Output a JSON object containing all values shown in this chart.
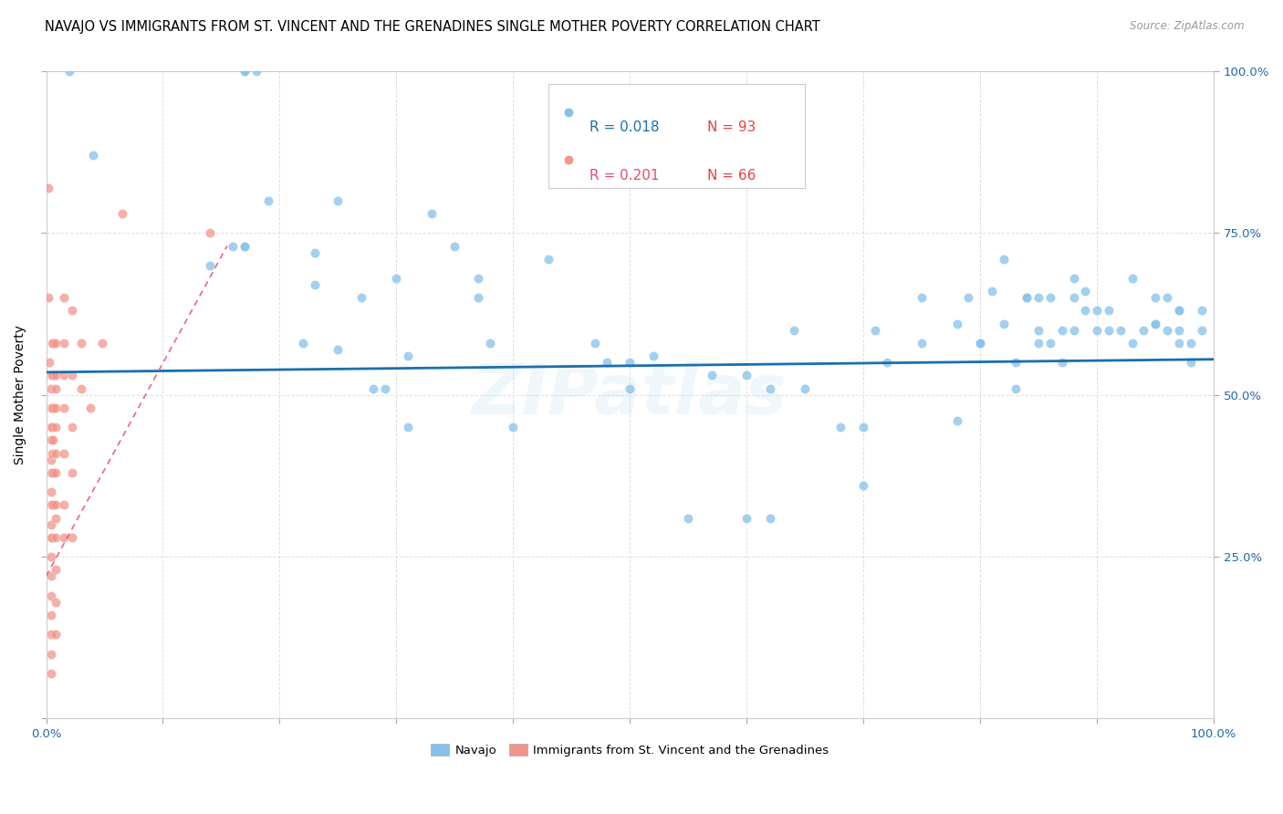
{
  "title": "NAVAJO VS IMMIGRANTS FROM ST. VINCENT AND THE GRENADINES SINGLE MOTHER POVERTY CORRELATION CHART",
  "source": "Source: ZipAtlas.com",
  "ylabel": "Single Mother Poverty",
  "watermark": "ZIPatlas",
  "legend_blue_r": "R = 0.018",
  "legend_blue_n": "N = 93",
  "legend_pink_r": "R = 0.201",
  "legend_pink_n": "N = 66",
  "legend_blue_label": "Navajo",
  "legend_pink_label": "Immigrants from St. Vincent and the Grenadines",
  "blue_color": "#85c1e9",
  "pink_color": "#f1948a",
  "blue_line_color": "#1a6fad",
  "pink_line_color": "#e74c6b",
  "blue_r_color": "#1a6fad",
  "pink_r_color": "#e74c6b",
  "blue_n_color": "#e84040",
  "pink_n_color": "#e84040",
  "xlim": [
    0.0,
    1.0
  ],
  "ylim": [
    0.0,
    1.0
  ],
  "blue_scatter_x": [
    0.02,
    0.04,
    0.14,
    0.16,
    0.17,
    0.17,
    0.17,
    0.17,
    0.18,
    0.19,
    0.22,
    0.23,
    0.23,
    0.25,
    0.25,
    0.27,
    0.28,
    0.29,
    0.3,
    0.31,
    0.31,
    0.33,
    0.35,
    0.37,
    0.37,
    0.38,
    0.4,
    0.43,
    0.47,
    0.48,
    0.5,
    0.5,
    0.52,
    0.55,
    0.57,
    0.6,
    0.6,
    0.62,
    0.62,
    0.64,
    0.65,
    0.68,
    0.7,
    0.7,
    0.71,
    0.72,
    0.75,
    0.75,
    0.78,
    0.78,
    0.79,
    0.8,
    0.8,
    0.81,
    0.82,
    0.82,
    0.83,
    0.83,
    0.84,
    0.84,
    0.85,
    0.85,
    0.85,
    0.86,
    0.86,
    0.87,
    0.87,
    0.88,
    0.88,
    0.88,
    0.89,
    0.89,
    0.9,
    0.9,
    0.91,
    0.91,
    0.92,
    0.93,
    0.93,
    0.94,
    0.95,
    0.95,
    0.95,
    0.96,
    0.96,
    0.97,
    0.97,
    0.97,
    0.97,
    0.98,
    0.98,
    0.99,
    0.99
  ],
  "blue_scatter_y": [
    1.0,
    0.87,
    0.7,
    0.73,
    0.73,
    0.73,
    1.0,
    1.0,
    1.0,
    0.8,
    0.58,
    0.72,
    0.67,
    0.57,
    0.8,
    0.65,
    0.51,
    0.51,
    0.68,
    0.45,
    0.56,
    0.78,
    0.73,
    0.68,
    0.65,
    0.58,
    0.45,
    0.71,
    0.58,
    0.55,
    0.55,
    0.51,
    0.56,
    0.31,
    0.53,
    0.53,
    0.31,
    0.51,
    0.31,
    0.6,
    0.51,
    0.45,
    0.36,
    0.45,
    0.6,
    0.55,
    0.58,
    0.65,
    0.46,
    0.61,
    0.65,
    0.58,
    0.58,
    0.66,
    0.71,
    0.61,
    0.55,
    0.51,
    0.65,
    0.65,
    0.6,
    0.65,
    0.58,
    0.65,
    0.58,
    0.55,
    0.6,
    0.6,
    0.65,
    0.68,
    0.63,
    0.66,
    0.6,
    0.63,
    0.63,
    0.6,
    0.6,
    0.68,
    0.58,
    0.6,
    0.61,
    0.61,
    0.65,
    0.6,
    0.65,
    0.6,
    0.63,
    0.63,
    0.58,
    0.55,
    0.58,
    0.6,
    0.63
  ],
  "pink_scatter_x": [
    0.002,
    0.002,
    0.003,
    0.004,
    0.004,
    0.004,
    0.004,
    0.004,
    0.004,
    0.004,
    0.004,
    0.004,
    0.004,
    0.004,
    0.004,
    0.004,
    0.004,
    0.004,
    0.004,
    0.004,
    0.004,
    0.005,
    0.005,
    0.005,
    0.005,
    0.005,
    0.005,
    0.005,
    0.005,
    0.006,
    0.006,
    0.006,
    0.006,
    0.006,
    0.006,
    0.008,
    0.008,
    0.008,
    0.008,
    0.008,
    0.008,
    0.008,
    0.008,
    0.008,
    0.008,
    0.008,
    0.008,
    0.008,
    0.015,
    0.015,
    0.015,
    0.015,
    0.015,
    0.015,
    0.015,
    0.022,
    0.022,
    0.022,
    0.022,
    0.022,
    0.03,
    0.03,
    0.038,
    0.048,
    0.065,
    0.14
  ],
  "pink_scatter_y": [
    0.82,
    0.65,
    0.55,
    0.53,
    0.51,
    0.48,
    0.45,
    0.43,
    0.4,
    0.38,
    0.35,
    0.33,
    0.3,
    0.28,
    0.25,
    0.22,
    0.19,
    0.16,
    0.13,
    0.1,
    0.07,
    0.58,
    0.53,
    0.48,
    0.45,
    0.41,
    0.38,
    0.33,
    0.28,
    0.58,
    0.53,
    0.48,
    0.43,
    0.38,
    0.33,
    0.58,
    0.53,
    0.51,
    0.48,
    0.45,
    0.41,
    0.38,
    0.33,
    0.31,
    0.28,
    0.23,
    0.18,
    0.13,
    0.65,
    0.58,
    0.53,
    0.48,
    0.41,
    0.33,
    0.28,
    0.63,
    0.53,
    0.45,
    0.38,
    0.28,
    0.58,
    0.51,
    0.48,
    0.58,
    0.78,
    0.75
  ],
  "blue_trendline_x": [
    0.0,
    1.0
  ],
  "blue_trendline_y": [
    0.535,
    0.555
  ],
  "pink_trendline_x": [
    0.0,
    0.155
  ],
  "pink_trendline_y": [
    0.22,
    0.73
  ],
  "background_color": "#ffffff",
  "grid_color": "#d8d8d8",
  "title_fontsize": 10.5,
  "axis_label_fontsize": 10,
  "tick_fontsize": 9.5,
  "scatter_size": 55,
  "legend_fontsize": 11
}
